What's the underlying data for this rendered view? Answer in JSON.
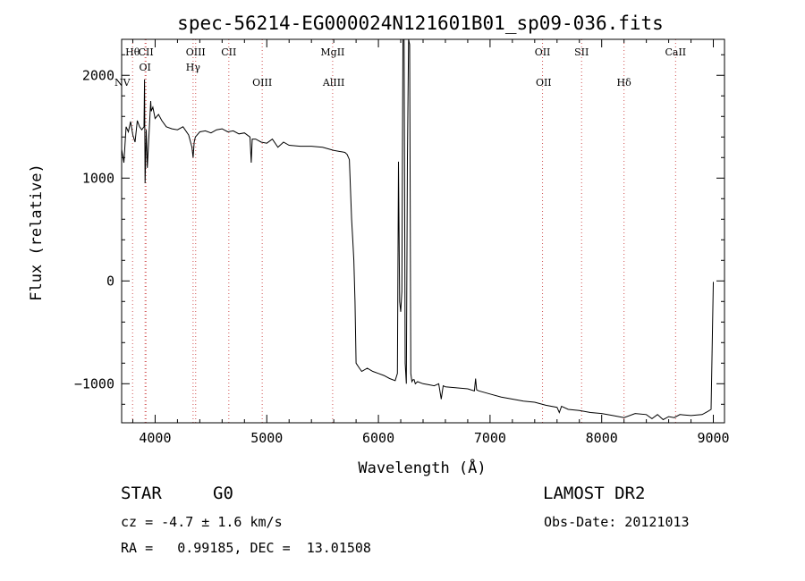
{
  "chart_data": {
    "type": "line",
    "title": "spec-56214-EG000024N121601B01_sp09-036.fits",
    "xlabel": "Wavelength (Å)",
    "ylabel": "Flux (relative)",
    "xlim": [
      3700,
      9100
    ],
    "ylim": [
      -1380,
      2350
    ],
    "x_ticks": [
      4000,
      5000,
      6000,
      7000,
      8000,
      9000
    ],
    "y_ticks": [
      -1000,
      0,
      1000,
      2000
    ],
    "grid": false,
    "series": [
      {
        "x": [
          3700,
          3720,
          3740,
          3760,
          3780,
          3800,
          3820,
          3840,
          3860,
          3880,
          3900,
          3905,
          3910,
          3920,
          3930,
          3950,
          3960,
          3965,
          3980,
          4000,
          4030,
          4060,
          4100,
          4150,
          4200,
          4250,
          4300,
          4330,
          4340,
          4350,
          4360,
          4400,
          4450,
          4500,
          4550,
          4600,
          4650,
          4700,
          4750,
          4800,
          4850,
          4861,
          4870,
          4900,
          4950,
          5000,
          5050,
          5100,
          5150,
          5200,
          5300,
          5400,
          5500,
          5600,
          5700,
          5720,
          5740,
          5760,
          5770,
          5780,
          5790,
          5800,
          5830,
          5850,
          5900,
          5950,
          6000,
          6050,
          6100,
          6150,
          6170,
          6180,
          6190,
          6200,
          6210,
          6220,
          6230,
          6240,
          6250,
          6260,
          6270,
          6280,
          6290,
          6300,
          6310,
          6320,
          6330,
          6350,
          6400,
          6450,
          6500,
          6540,
          6563,
          6580,
          6600,
          6700,
          6800,
          6860,
          6870,
          6880,
          6900,
          7000,
          7100,
          7200,
          7300,
          7400,
          7500,
          7600,
          7620,
          7640,
          7700,
          7800,
          7900,
          8000,
          8100,
          8200,
          8300,
          8400,
          8450,
          8500,
          8550,
          8600,
          8650,
          8700,
          8800,
          8900,
          8950,
          8980,
          9000
        ],
        "y": [
          1280,
          1150,
          1500,
          1450,
          1550,
          1420,
          1350,
          1560,
          1500,
          1470,
          1500,
          1960,
          950,
          1470,
          1100,
          1530,
          1750,
          1650,
          1690,
          1580,
          1620,
          1560,
          1500,
          1480,
          1470,
          1500,
          1420,
          1300,
          1200,
          1350,
          1400,
          1450,
          1460,
          1440,
          1470,
          1480,
          1450,
          1460,
          1430,
          1440,
          1400,
          1150,
          1380,
          1380,
          1350,
          1340,
          1380,
          1300,
          1350,
          1320,
          1310,
          1310,
          1300,
          1270,
          1250,
          1230,
          1180,
          600,
          400,
          200,
          -200,
          -800,
          -850,
          -880,
          -850,
          -880,
          -900,
          -920,
          -950,
          -970,
          -900,
          1160,
          -200,
          -300,
          -100,
          2350,
          2350,
          -800,
          -1000,
          1200,
          2350,
          2300,
          -900,
          -980,
          -960,
          -960,
          -1000,
          -980,
          -1000,
          -1010,
          -1020,
          -1000,
          -1150,
          -1020,
          -1030,
          -1040,
          -1050,
          -1070,
          -950,
          -1060,
          -1070,
          -1100,
          -1130,
          -1150,
          -1170,
          -1180,
          -1210,
          -1230,
          -1280,
          -1220,
          -1250,
          -1260,
          -1280,
          -1290,
          -1310,
          -1330,
          -1290,
          -1300,
          -1340,
          -1300,
          -1350,
          -1320,
          -1330,
          -1300,
          -1310,
          -1300,
          -1270,
          -1250,
          -10
        ]
      }
    ],
    "lines_top": [
      {
        "label": "Hθ",
        "x": 3798
      },
      {
        "label": "CII",
        "x": 3918
      },
      {
        "label": "OIII",
        "x": 4363
      },
      {
        "label": "CII",
        "x": 4660
      },
      {
        "label": "MgII",
        "x": 5590
      },
      {
        "label": "OII",
        "x": 7470
      },
      {
        "label": "SII",
        "x": 7820
      },
      {
        "label": "CaII",
        "x": 8662
      }
    ],
    "lines_bottom": [
      {
        "label": "NV",
        "x": 3700
      },
      {
        "label": "OI",
        "x": 3910
      },
      {
        "label": "Hγ",
        "x": 4340
      },
      {
        "label": "OIII",
        "x": 4959
      },
      {
        "label": "AlIII",
        "x": 5600
      },
      {
        "label": "OII",
        "x": 7480
      },
      {
        "label": "Hδ",
        "x": 8200
      }
    ],
    "reference_lines_x": [
      3798,
      3910,
      3918,
      4340,
      4363,
      4660,
      4959,
      5590,
      7470,
      7820,
      8200,
      8662
    ]
  },
  "info": {
    "object_type": "STAR",
    "object_class": "G0",
    "survey": "LAMOST DR2",
    "cz": "cz = -4.7 ± 1.6 km/s",
    "obs_date": "Obs-Date: 20121013",
    "radec": "RA =   0.99185, DEC =  13.01508"
  }
}
